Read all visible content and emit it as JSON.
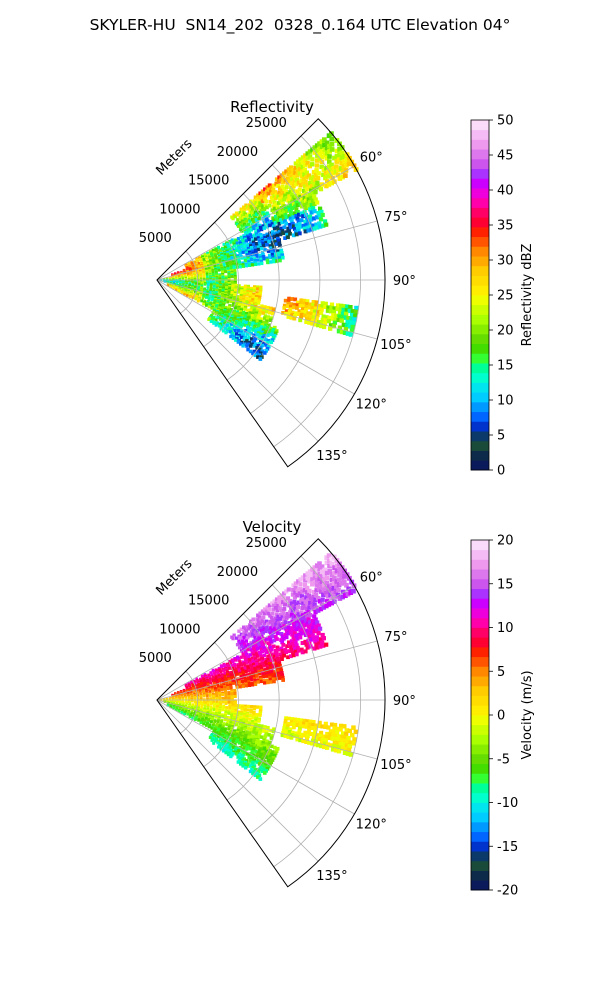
{
  "suptitle": "SKYLER-HU  SN14_202  0328_0.164 UTC Elevation 04°",
  "chart_data": [
    {
      "type": "polar-sector",
      "title": "Reflectivity",
      "range_label": "Meters",
      "range_ticks": [
        5000,
        10000,
        15000,
        20000,
        25000
      ],
      "range_max": 28000,
      "azimuth_range": [
        45,
        145
      ],
      "azimuth_ticks": [
        "60°",
        "75°",
        "90°",
        "105°",
        "120°",
        "135°"
      ],
      "azimuth_tick_values": [
        60,
        75,
        90,
        105,
        120,
        135
      ],
      "grid": true,
      "colorbar": {
        "label": "Reflectivity dBZ",
        "min": 0,
        "max": 50,
        "ticks": [
          0,
          5,
          10,
          15,
          20,
          25,
          30,
          35,
          40,
          45,
          50
        ],
        "colors": [
          "#0a1a5a",
          "#0d2a4a",
          "#1a4a3a",
          "#0b3a6a",
          "#0033cc",
          "#0066ff",
          "#0099ff",
          "#00ccff",
          "#00e5ee",
          "#00ffcc",
          "#00ff99",
          "#33ff33",
          "#44dd00",
          "#66dd00",
          "#88ee00",
          "#aaff00",
          "#ccff00",
          "#eeff00",
          "#ffee00",
          "#ffdd00",
          "#ffcc00",
          "#ffaa00",
          "#ff8800",
          "#ff5500",
          "#ff2200",
          "#ff0033",
          "#ff0066",
          "#ff00aa",
          "#ee00dd",
          "#cc00ff",
          "#aa33ff",
          "#cc55ee",
          "#dd77ee",
          "#ee99ee",
          "#f4bbf4",
          "#fadcfa"
        ]
      }
    },
    {
      "type": "polar-sector",
      "title": "Velocity",
      "range_label": "Meters",
      "range_ticks": [
        5000,
        10000,
        15000,
        20000,
        25000
      ],
      "range_max": 28000,
      "azimuth_range": [
        45,
        145
      ],
      "azimuth_ticks": [
        "60°",
        "75°",
        "90°",
        "105°",
        "120°",
        "135°"
      ],
      "azimuth_tick_values": [
        60,
        75,
        90,
        105,
        120,
        135
      ],
      "grid": true,
      "colorbar": {
        "label": "Velocity (m/s)",
        "min": -20,
        "max": 20,
        "ticks": [
          -20,
          -15,
          -10,
          -5,
          0,
          5,
          10,
          15,
          20
        ],
        "colors": [
          "#0a1a5a",
          "#0d2a4a",
          "#1a4a3a",
          "#0b3a6a",
          "#0033cc",
          "#0066ff",
          "#0099ff",
          "#00ccff",
          "#00e5ee",
          "#00ffcc",
          "#00ff99",
          "#33ff33",
          "#44dd00",
          "#66dd00",
          "#88ee00",
          "#aaff00",
          "#ccff00",
          "#eeff00",
          "#ffee00",
          "#ffdd00",
          "#ffcc00",
          "#ffaa00",
          "#ff8800",
          "#ff5500",
          "#ff2200",
          "#ff0033",
          "#ff0066",
          "#ff00aa",
          "#ee00dd",
          "#cc00ff",
          "#aa33ff",
          "#cc55ee",
          "#dd77ee",
          "#ee99ee",
          "#f4bbf4",
          "#fadcfa"
        ]
      }
    }
  ]
}
